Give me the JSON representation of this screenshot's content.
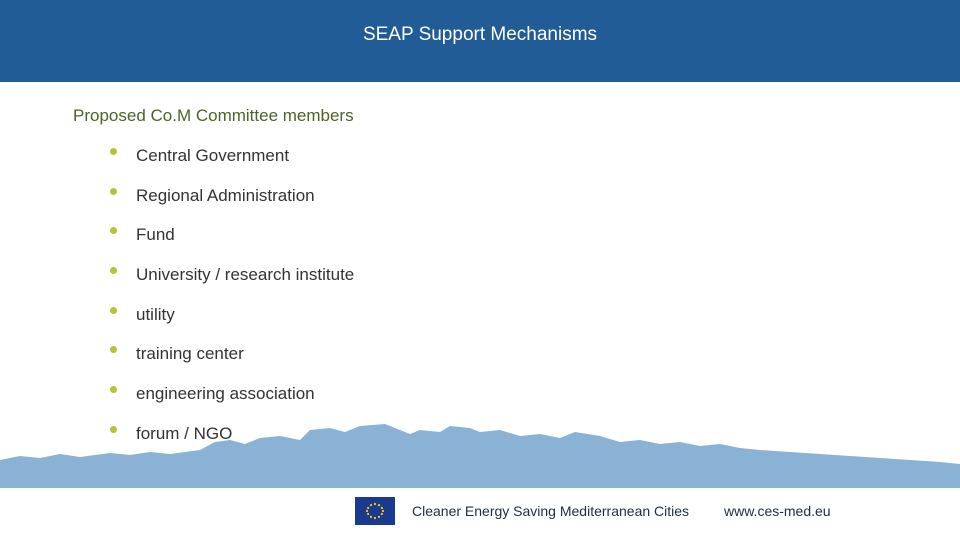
{
  "header": {
    "title": "SEAP Support Mechanisms",
    "background_color": "#225c96"
  },
  "content": {
    "subtitle": "Proposed Co.M Committee members",
    "bullet_color": "#b5c434",
    "items": [
      "Central Government",
      "Regional Administration",
      "Fund",
      "University / research institute",
      "utility",
      "training center",
      "engineering association",
      "forum / NGO"
    ]
  },
  "footer": {
    "logo_icon": "eu-flag-icon",
    "text": "Cleaner Energy Saving Mediterranean Cities",
    "url": "www.ces-med.eu"
  },
  "decoration": {
    "skyline_color": "#8ab2d4"
  }
}
